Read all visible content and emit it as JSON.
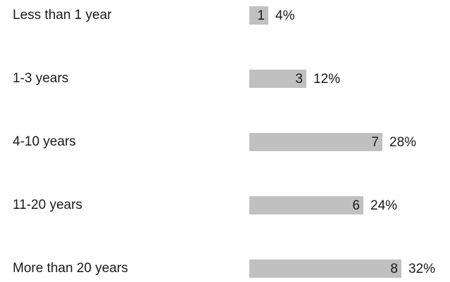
{
  "chart_data": {
    "type": "hbar",
    "categories": [
      "Less than 1 year",
      "1-3 years",
      "4-10 years",
      "11-20 years",
      "More than 20 years"
    ],
    "values": [
      1,
      3,
      7,
      6,
      8
    ],
    "percent_labels": [
      "4%",
      "12%",
      "28%",
      "24%",
      "32%"
    ],
    "color": "#c0c0c0"
  }
}
